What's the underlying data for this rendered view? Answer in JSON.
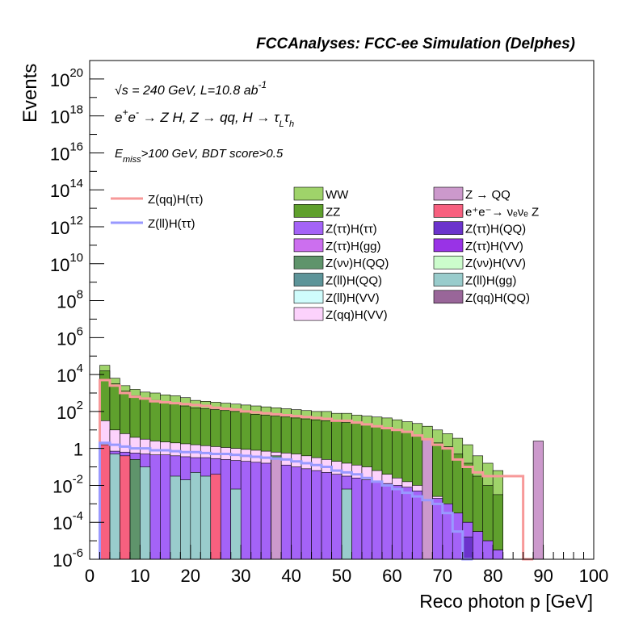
{
  "header": {
    "title": "FCCAnalyses: FCC-ee Simulation (Delphes)"
  },
  "annotations": {
    "sqrt_s": "s = 240 GeV, L=10.8 ab",
    "lumi_exp": "-1",
    "process_part1": "e",
    "process_part2": "e",
    "process_part3": "→ Z H, Z  → qq, H  → τ",
    "process_sub1": "L",
    "process_tau2": "τ",
    "process_sub2": "h",
    "cut_emiss": "E",
    "cut_emiss_sub": "miss",
    "cut_rest": ">100 GeV, BDT score>0.5",
    "sqrt_symbol": "√",
    "plus": "+",
    "minus": "-"
  },
  "colors": {
    "WW": "#9fd36a",
    "ZZ": "#5fa02d",
    "Z(tautau)H(tautau)": "#a463f7",
    "Z(tautau)H(gg)": "#cc6fef",
    "Z(nunu)H(QQ)": "#5f946b",
    "Z(ll)H(QQ)": "#5d9499",
    "Z(ll)H(VV)": "#cffcfc",
    "Z(qq)H(VV)": "#fcd2fc",
    "Z->QQ": "#cc99cc",
    "eeZ": "#f7607f",
    "Z(tautau)H(QQ)": "#6b33cc",
    "Z(tautau)H(VV)": "#9933e6",
    "Z(nunu)H(VV)": "#ccfccc",
    "Z(ll)H(gg)": "#99cccc",
    "Z(qq)H(QQ)": "#996699",
    "sig_qq": "#f79999",
    "sig_ll": "#9999ff"
  },
  "chart_data": {
    "type": "histogram-stacked",
    "xlabel": "Reco photon p [GeV]",
    "ylabel": "Events",
    "xlim": [
      0,
      100
    ],
    "ylim": [
      1e-06,
      1e+21
    ],
    "log_y": true,
    "bin_width": 2,
    "x_ticks": [
      "0",
      "10",
      "20",
      "30",
      "40",
      "50",
      "60",
      "70",
      "80",
      "90",
      "100"
    ],
    "y_ticks": [
      {
        "base": "10",
        "exp": "-6"
      },
      {
        "base": "10",
        "exp": "-4"
      },
      {
        "base": "10",
        "exp": "-2"
      },
      {
        "base": "1",
        "exp": ""
      },
      {
        "base": "10",
        "exp": "2"
      },
      {
        "base": "10",
        "exp": "4"
      },
      {
        "base": "10",
        "exp": "6"
      },
      {
        "base": "10",
        "exp": "8"
      },
      {
        "base": "10",
        "exp": "10"
      },
      {
        "base": "10",
        "exp": "12"
      },
      {
        "base": "10",
        "exp": "14"
      },
      {
        "base": "10",
        "exp": "16"
      },
      {
        "base": "10",
        "exp": "18"
      },
      {
        "base": "10",
        "exp": "20"
      }
    ],
    "legend_left": [
      {
        "name": "Z(qq)H(ττ)",
        "color": "#f79999"
      },
      {
        "name": "Z(ll)H(ττ)",
        "color": "#9999ff"
      }
    ],
    "legend_mid": [
      {
        "name": "WW",
        "color": "#9fd36a"
      },
      {
        "name": "ZZ",
        "color": "#5fa02d"
      },
      {
        "name": "Z(ττ)H(ττ)",
        "color": "#a463f7"
      },
      {
        "name": "Z(ττ)H(gg)",
        "color": "#cc6fef"
      },
      {
        "name": "Z(νν)H(QQ)",
        "color": "#5f946b"
      },
      {
        "name": "Z(ll)H(QQ)",
        "color": "#5d9499"
      },
      {
        "name": "Z(ll)H(VV)",
        "color": "#cffcfc"
      },
      {
        "name": "Z(qq)H(VV)",
        "color": "#fcd2fc"
      }
    ],
    "legend_right": [
      {
        "name": "Z → QQ",
        "color": "#cc99cc"
      },
      {
        "name": "e⁺e⁻→ νₑνₑ Z",
        "color": "#f7607f"
      },
      {
        "name": "Z(ττ)H(QQ)",
        "color": "#6b33cc"
      },
      {
        "name": "Z(ττ)H(VV)",
        "color": "#9933e6"
      },
      {
        "name": "Z(νν)H(VV)",
        "color": "#ccfccc"
      },
      {
        "name": "Z(ll)H(gg)",
        "color": "#99cccc"
      },
      {
        "name": "Z(qq)H(QQ)",
        "color": "#996699"
      }
    ],
    "stack_totals_exp": {
      "x_start": 2,
      "WW": [
        4.5,
        3.8,
        3.4,
        3.2,
        3.05,
        3.0,
        2.9,
        2.85,
        2.75,
        2.6,
        2.55,
        2.5,
        2.45,
        2.4,
        2.35,
        2.3,
        2.25,
        2.2,
        2.15,
        2.1,
        2.05,
        2.0,
        2.0,
        1.9,
        1.9,
        1.8,
        1.75,
        1.7,
        1.65,
        1.55,
        1.45,
        1.35,
        1.2,
        1.0,
        0.8,
        0.55,
        0.2,
        -0.4,
        -0.8,
        -1.2
      ],
      "ZZ": [
        4.2,
        3.5,
        3.1,
        2.85,
        2.7,
        2.6,
        2.5,
        2.4,
        2.3,
        2.2,
        2.15,
        2.1,
        2.05,
        2.0,
        1.95,
        1.85,
        1.8,
        1.75,
        1.7,
        1.65,
        1.6,
        1.55,
        1.5,
        1.45,
        1.4,
        1.35,
        1.3,
        1.2,
        1.1,
        1.0,
        0.9,
        0.7,
        0.5,
        0.3,
        0.1,
        -0.3,
        -0.8,
        -1.5,
        -2.0,
        -2.5
      ],
      "Ztt": [
        -0.1,
        -0.15,
        -0.2,
        -0.25,
        -0.3,
        -0.35,
        -0.35,
        -0.4,
        -0.45,
        -0.5,
        -0.5,
        -0.55,
        -0.6,
        -0.65,
        -0.7,
        -0.75,
        -0.8,
        -0.85,
        -0.9,
        -1.0,
        -1.1,
        -1.2,
        -1.3,
        -1.4,
        -1.5,
        -1.6,
        -1.7,
        -1.8,
        -1.9,
        -2.0,
        -2.1,
        -2.3,
        -2.5,
        -2.7,
        -3.0,
        -3.5,
        -4.0,
        -4.5,
        -5.0,
        -5.5
      ],
      "mid": [
        1.5,
        1.0,
        0.8,
        0.6,
        0.5,
        0.4,
        0.35,
        0.3,
        0.25,
        0.2,
        0.15,
        0.1,
        0.05,
        0.0,
        -0.05,
        -0.1,
        -0.15,
        -0.2,
        -0.25,
        -0.3,
        -0.4,
        -0.5,
        -0.6,
        -0.7,
        -0.8,
        -0.9,
        -1.0,
        -1.2,
        -1.4,
        -1.6,
        -1.8,
        -2.0,
        -2.3,
        -2.6,
        -3.0,
        -3.5,
        -4.0,
        -4.5,
        -5.0,
        -5.5
      ]
    },
    "sig_qq_exp": [
      3.7,
      3.4,
      3.0,
      2.8,
      2.7,
      2.55,
      2.5,
      2.45,
      2.4,
      2.35,
      2.3,
      2.2,
      2.15,
      2.1,
      2.0,
      1.95,
      1.9,
      1.85,
      1.8,
      1.75,
      1.7,
      1.65,
      1.6,
      1.5,
      1.5,
      1.4,
      1.3,
      1.2,
      1.1,
      1.0,
      0.9,
      0.7,
      0.5,
      0.2,
      0.0,
      -0.6,
      -1.0,
      -1.3,
      -1.5,
      -1.5,
      -1.5,
      -1.5,
      -6.0
    ],
    "sig_ll_exp": [
      0.3,
      0.2,
      0.1,
      0.0,
      0.0,
      -0.1,
      -0.1,
      -0.15,
      -0.2,
      -0.2,
      -0.25,
      -0.3,
      -0.3,
      -0.35,
      -0.4,
      -0.45,
      -0.5,
      -0.55,
      -0.6,
      -0.7,
      -0.8,
      -0.9,
      -1.0,
      -1.2,
      -1.3,
      -1.4,
      -1.6,
      -1.8,
      -2.0,
      -2.2,
      -2.4,
      -2.6,
      -2.8,
      -3.0,
      -3.5,
      -4.5,
      -6.0
    ],
    "ZQQ_bins": [
      {
        "x": 36,
        "exp": -0.5
      },
      {
        "x": 66,
        "exp": 0.5
      },
      {
        "x": 88,
        "exp": 0.4
      }
    ],
    "eeZ_bins": [
      {
        "x": 2,
        "exp": 0.2
      },
      {
        "x": 6,
        "exp": -0.4
      },
      {
        "x": 24,
        "exp": -1.4
      }
    ]
  }
}
